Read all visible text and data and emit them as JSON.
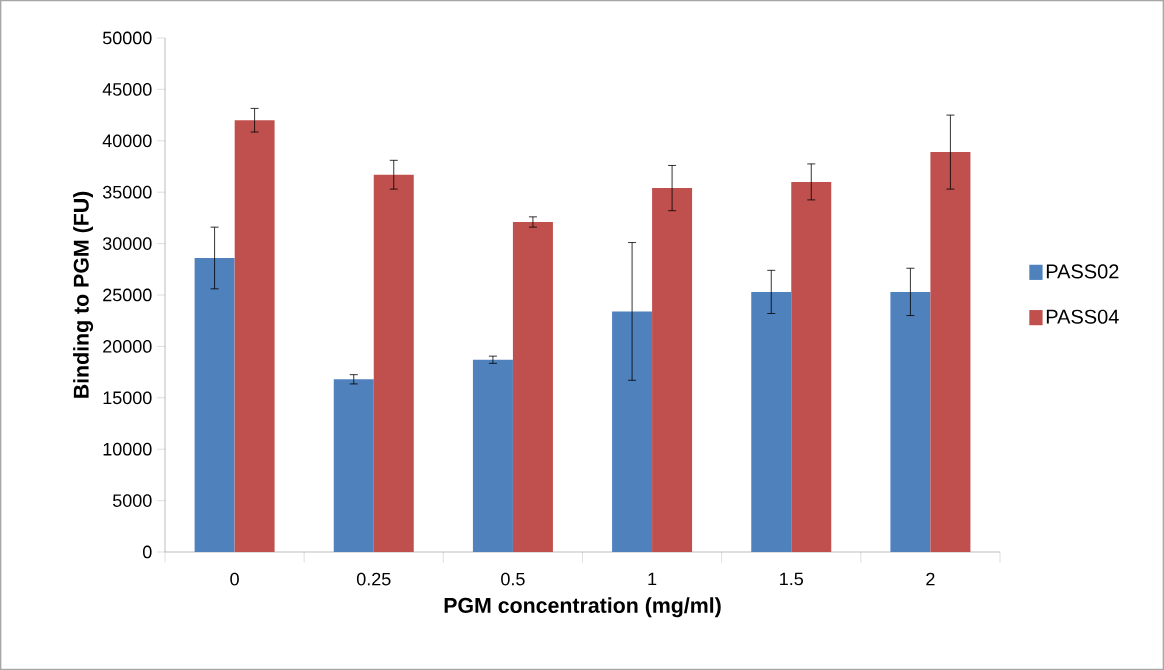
{
  "chart_data": {
    "type": "bar",
    "xlabel": "PGM concentration (mg/ml)",
    "ylabel": "Binding to PGM (FU)",
    "categories": [
      "0",
      "0.25",
      "0.5",
      "1",
      "1.5",
      "2"
    ],
    "series": [
      {
        "name": "PASS02",
        "color": "#4f81bd",
        "values": [
          28600,
          16800,
          18700,
          23400,
          25300,
          25300
        ],
        "errors": [
          3000,
          450,
          350,
          6700,
          2100,
          2300
        ]
      },
      {
        "name": "PASS04",
        "color": "#c0504d",
        "values": [
          42000,
          36700,
          32100,
          35400,
          36000,
          38900
        ],
        "errors": [
          1150,
          1400,
          500,
          2200,
          1750,
          3600
        ]
      }
    ],
    "ylim": [
      0,
      50000
    ],
    "yticks": [
      0,
      5000,
      10000,
      15000,
      20000,
      25000,
      30000,
      35000,
      40000,
      45000,
      50000
    ],
    "grid": false,
    "legend": "right"
  }
}
